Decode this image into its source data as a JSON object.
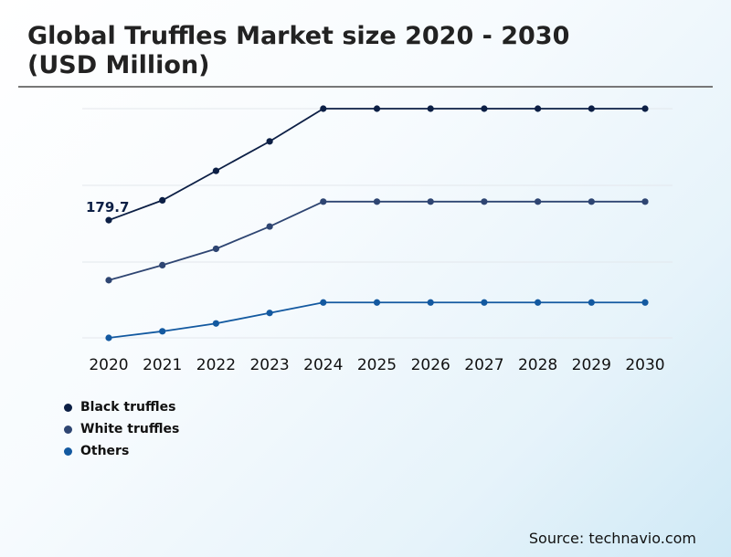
{
  "title_line1": "Global Truffles Market size 2020 - 2030",
  "title_line2": "(USD Million)",
  "source": "Source: technavio.com",
  "chart_data": {
    "type": "line",
    "title": "Global Truffles Market size 2020 - 2030 (USD Million)",
    "categories": [
      "2020",
      "2021",
      "2022",
      "2023",
      "2024",
      "2025",
      "2026",
      "2027",
      "2028",
      "2029",
      "2030"
    ],
    "ylim": [
      0,
      600
    ],
    "grid": true,
    "legend_position": "bottom-left",
    "series": [
      {
        "name": "Black truffles",
        "color": "#0c1f45",
        "values": [
          179.7,
          210,
          255,
          300,
          350,
          350,
          350,
          350,
          350,
          350,
          350
        ]
      },
      {
        "name": "White truffles",
        "color": "#2e4572",
        "values": [
          88,
          111,
          136,
          170,
          208,
          208,
          208,
          208,
          208,
          208,
          208
        ]
      },
      {
        "name": "Others",
        "color": "#1359a0",
        "values": [
          0,
          10,
          22,
          38,
          54,
          54,
          54,
          54,
          54,
          54,
          54
        ]
      }
    ],
    "annotations": [
      {
        "series": 0,
        "index": 0,
        "text": "179.7"
      }
    ]
  }
}
